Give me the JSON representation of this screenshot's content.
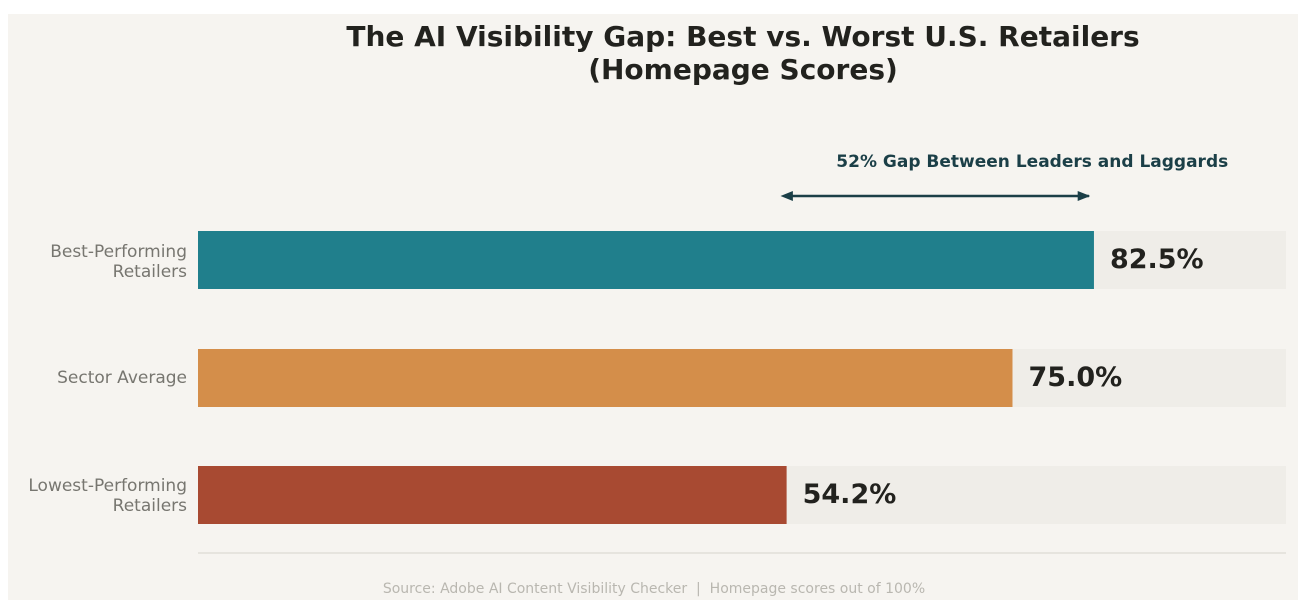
{
  "chart_data": {
    "type": "bar",
    "orientation": "horizontal",
    "title": "The AI Visibility Gap: Best vs. Worst U.S. Retailers",
    "subtitle": "(Homepage Scores)",
    "categories": [
      "Best-Performing Retailers",
      "Sector Average",
      "Lowest-Performing Retailers"
    ],
    "category_lines": [
      [
        "Best-Performing",
        "Retailers"
      ],
      [
        "Sector Average"
      ],
      [
        "Lowest-Performing",
        "Retailers"
      ]
    ],
    "values": [
      82.5,
      75.0,
      54.2
    ],
    "value_labels": [
      "82.5%",
      "75.0%",
      "54.2%"
    ],
    "xlim": [
      0,
      100
    ],
    "colors": [
      "#207f8c",
      "#d48e4a",
      "#a84a32"
    ],
    "track_color": "#efede8",
    "annotation": {
      "text": "52% Gap Between Leaders and Laggards",
      "from_value": 54.2,
      "to_value": 82.5
    },
    "source": "Source: Adobe AI Content Visibility Checker  |  Homepage scores out of 100%",
    "xlabel": "",
    "ylabel": ""
  }
}
